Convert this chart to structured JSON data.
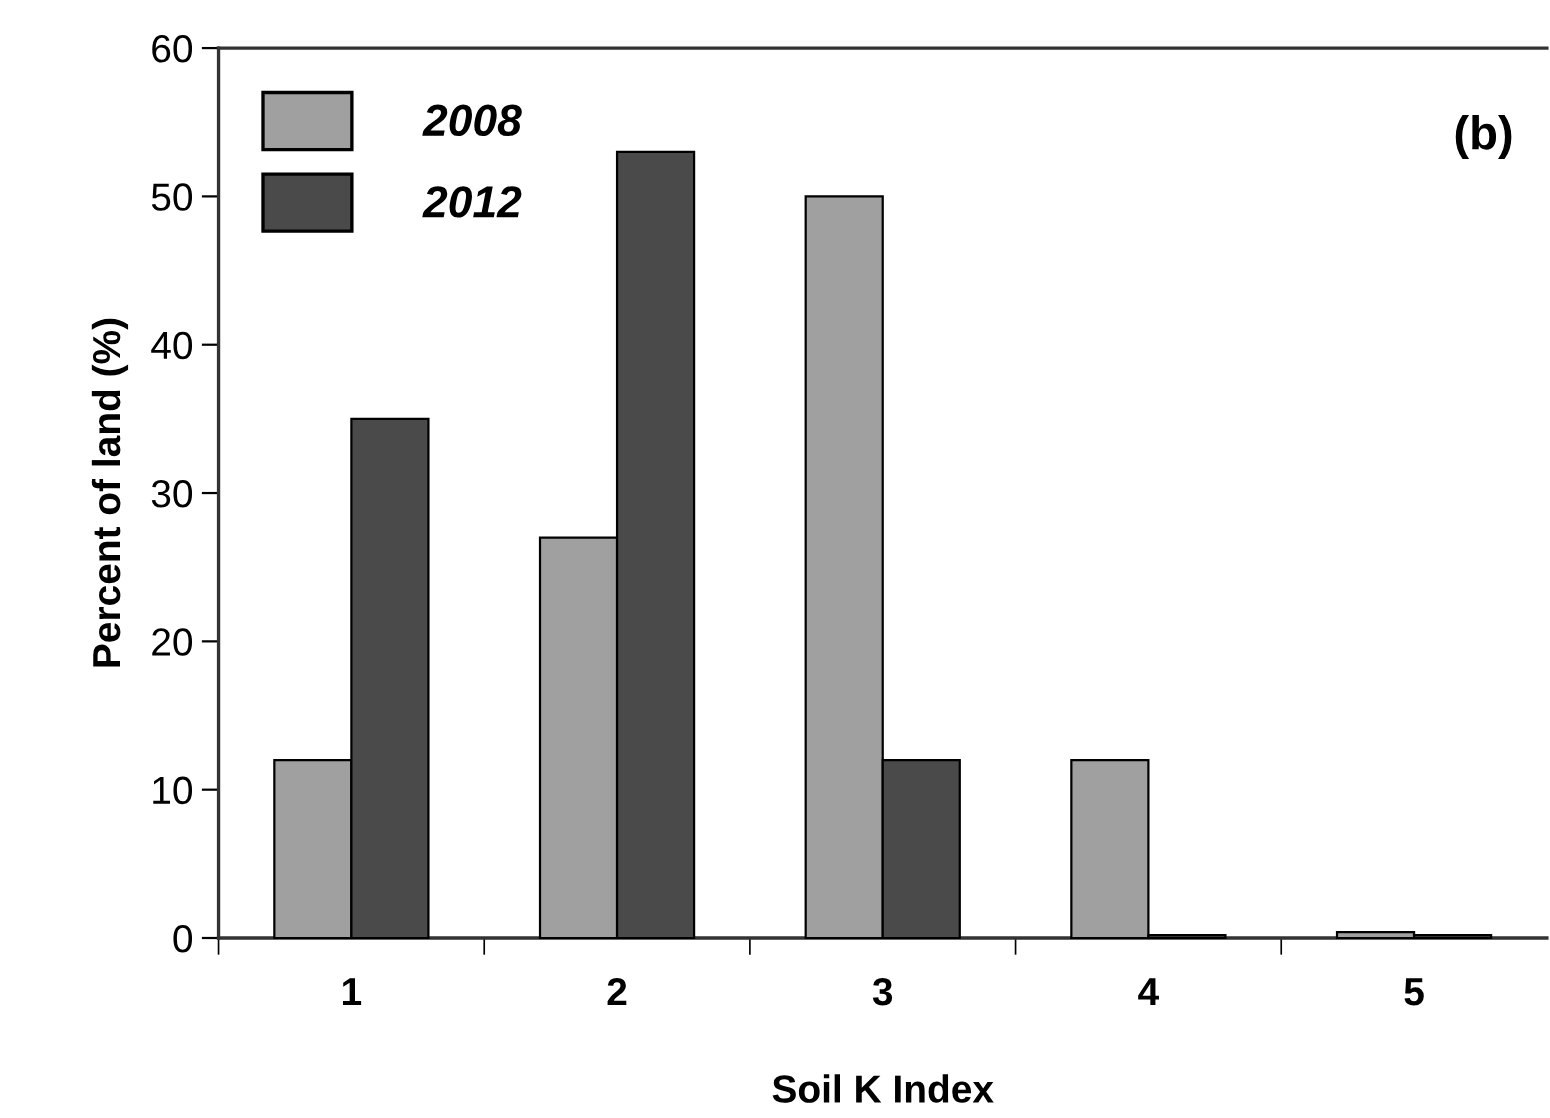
{
  "chart_data": {
    "type": "bar",
    "xlabel": "Soil K Index",
    "ylabel": "Percent of land (%)",
    "categories": [
      "1",
      "2",
      "3",
      "4",
      "5"
    ],
    "series": [
      {
        "name": "2008",
        "color": "#a0a0a0",
        "values": [
          12,
          27,
          50,
          12,
          0.4
        ]
      },
      {
        "name": "2012",
        "color": "#4a4a4a",
        "values": [
          35,
          53,
          12,
          0.2,
          0.2
        ]
      }
    ],
    "ylim": [
      0,
      60
    ],
    "yticks": [
      0,
      10,
      20,
      30,
      40,
      50,
      60
    ],
    "grid": false,
    "legend": "top left",
    "annotations": [
      "(b)"
    ]
  }
}
